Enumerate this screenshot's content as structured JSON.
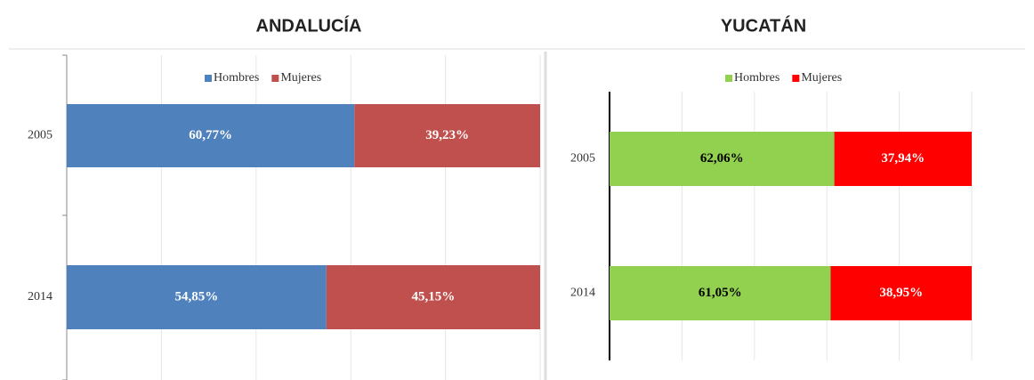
{
  "chart_data": [
    {
      "type": "stacked-barh",
      "title": "ANDALUCÍA",
      "categories": [
        "2005",
        "2014"
      ],
      "series": [
        {
          "name": "Hombres",
          "color": "#4f81bd",
          "label_color": "#ffffff",
          "values": [
            60.77,
            54.85
          ],
          "value_labels": [
            "60,77%",
            "54,85%"
          ]
        },
        {
          "name": "Mujeres",
          "color": "#c0504d",
          "label_color": "#ffffff",
          "values": [
            39.23,
            45.15
          ],
          "value_labels": [
            "39,23%",
            "45,15%"
          ]
        }
      ],
      "xlim": [
        0,
        100
      ],
      "xticks": [
        0,
        20,
        40,
        60,
        80,
        100
      ],
      "grid": true,
      "legend": "top"
    },
    {
      "type": "stacked-barh",
      "title": "YUCATÁN",
      "categories": [
        "2005",
        "2014"
      ],
      "series": [
        {
          "name": "Hombres",
          "color": "#92d050",
          "label_color": "#000000",
          "values": [
            62.06,
            61.05
          ],
          "value_labels": [
            "62,06%",
            "61,05%"
          ]
        },
        {
          "name": "Mujeres",
          "color": "#ff0000",
          "label_color": "#ffffff",
          "values": [
            37.94,
            38.95
          ],
          "value_labels": [
            "37,94%",
            "38,95%"
          ]
        }
      ],
      "xlim": [
        0,
        100
      ],
      "xticks": [
        0,
        20,
        40,
        60,
        80,
        100
      ],
      "grid": true,
      "legend": "top"
    }
  ]
}
